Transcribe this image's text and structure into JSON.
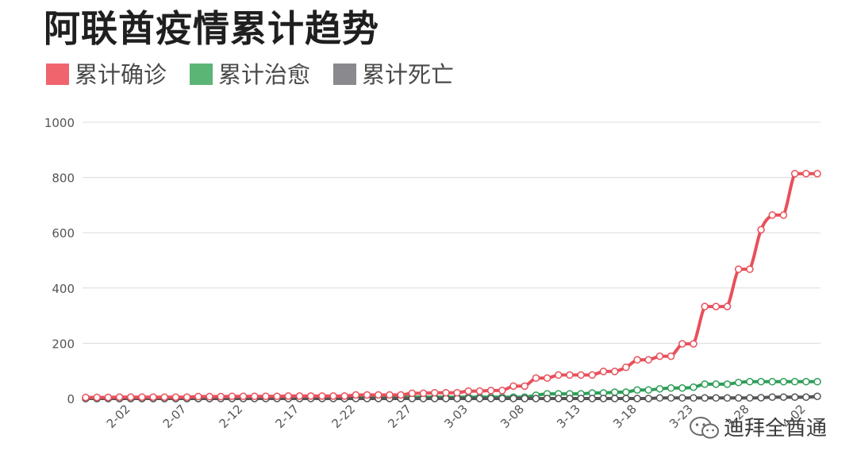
{
  "chart_data": {
    "type": "line",
    "title": "阿联酋疫情累计趋势",
    "x": [
      "1-29",
      "1-30",
      "1-31",
      "2-01",
      "2-02",
      "2-03",
      "2-04",
      "2-05",
      "2-06",
      "2-07",
      "2-08",
      "2-09",
      "2-10",
      "2-11",
      "2-12",
      "2-13",
      "2-14",
      "2-15",
      "2-16",
      "2-17",
      "2-18",
      "2-19",
      "2-20",
      "2-21",
      "2-22",
      "2-23",
      "2-24",
      "2-25",
      "2-26",
      "2-27",
      "2-28",
      "2-29",
      "3-01",
      "3-02",
      "3-03",
      "3-04",
      "3-05",
      "3-06",
      "3-07",
      "3-08",
      "3-09",
      "3-10",
      "3-11",
      "3-12",
      "3-13",
      "3-14",
      "3-15",
      "3-16",
      "3-17",
      "3-18",
      "3-19",
      "3-20",
      "3-21",
      "3-22",
      "3-23",
      "3-24",
      "3-25",
      "3-26",
      "3-27",
      "3-28",
      "3-29",
      "3-30",
      "3-31",
      "4-01",
      "4-02",
      "4-03"
    ],
    "x_tick_labels": [
      "2-02",
      "2-07",
      "2-12",
      "2-17",
      "2-22",
      "2-27",
      "3-03",
      "3-08",
      "3-13",
      "3-18",
      "3-23",
      "3-28",
      "4-02"
    ],
    "series": [
      {
        "name": "累计确诊",
        "color": "#e8505b",
        "values": [
          4,
          4,
          4,
          5,
          5,
          5,
          5,
          5,
          5,
          5,
          7,
          7,
          7,
          8,
          8,
          8,
          8,
          8,
          9,
          9,
          9,
          9,
          9,
          9,
          13,
          13,
          13,
          13,
          13,
          19,
          19,
          21,
          21,
          21,
          27,
          27,
          29,
          29,
          45,
          45,
          74,
          74,
          85,
          85,
          85,
          85,
          98,
          98,
          113,
          140,
          140,
          153,
          153,
          198,
          198,
          333,
          333,
          333,
          468,
          468,
          611,
          664,
          664,
          814,
          814,
          814
        ]
      },
      {
        "name": "累计治愈",
        "color": "#2e9e58",
        "values": [
          0,
          0,
          0,
          0,
          0,
          0,
          0,
          0,
          0,
          0,
          0,
          0,
          1,
          1,
          1,
          3,
          3,
          3,
          3,
          3,
          4,
          4,
          4,
          4,
          4,
          4,
          5,
          5,
          5,
          5,
          5,
          5,
          5,
          5,
          5,
          5,
          5,
          5,
          5,
          5,
          12,
          17,
          17,
          17,
          17,
          20,
          20,
          23,
          23,
          31,
          31,
          35,
          38,
          38,
          41,
          52,
          52,
          52,
          58,
          61,
          61,
          61,
          61,
          61,
          61,
          61
        ]
      },
      {
        "name": "累计死亡",
        "color": "#555555",
        "values": [
          0,
          0,
          0,
          0,
          0,
          0,
          0,
          0,
          0,
          0,
          0,
          0,
          0,
          0,
          0,
          0,
          0,
          0,
          0,
          0,
          0,
          0,
          0,
          0,
          0,
          0,
          0,
          0,
          0,
          0,
          0,
          0,
          0,
          0,
          0,
          0,
          0,
          0,
          0,
          0,
          0,
          0,
          0,
          0,
          0,
          0,
          0,
          0,
          0,
          0,
          0,
          2,
          2,
          2,
          2,
          2,
          2,
          2,
          2,
          2,
          3,
          5,
          5,
          5,
          5,
          8
        ]
      }
    ],
    "legend": [
      {
        "name": "累计确诊",
        "color": "#f0646e"
      },
      {
        "name": "累计治愈",
        "color": "#5bb574"
      },
      {
        "name": "累计死亡",
        "color": "#8a8a8e"
      }
    ],
    "ylim": [
      0,
      1000
    ],
    "y_ticks": [
      0,
      200,
      400,
      600,
      800,
      1000
    ],
    "xlabel": "",
    "ylabel": "",
    "grid": true,
    "legend_position": "top-left"
  },
  "watermark": {
    "text": "迪拜全酋通",
    "icon": "wechat-icon"
  }
}
